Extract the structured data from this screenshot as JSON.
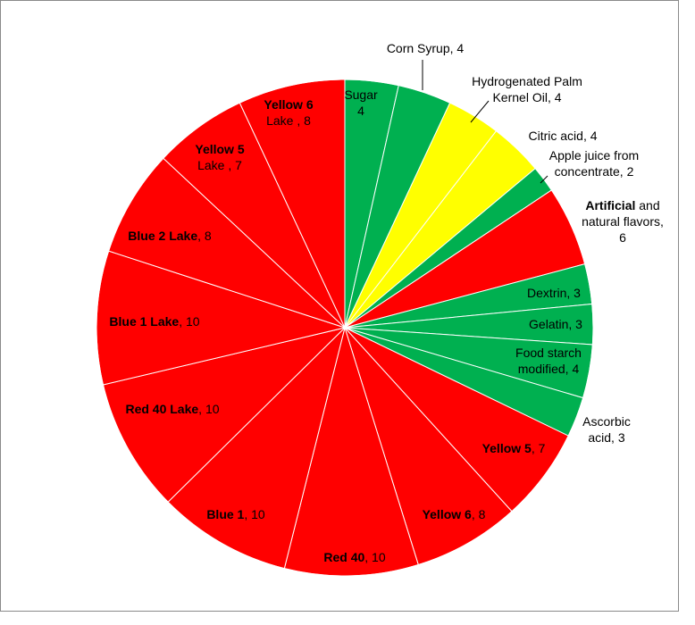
{
  "chart_data": {
    "type": "pie",
    "title": "",
    "start_angle_deg": 0,
    "direction": "clockwise",
    "slices": [
      {
        "name": "Sugar",
        "value": 4,
        "label_lines": [
          [
            {
              "t": "Sugar",
              "b": false
            }
          ],
          [
            {
              "t": "4",
              "b": false
            }
          ]
        ],
        "color": "#00b050"
      },
      {
        "name": "Corn Syrup",
        "value": 4,
        "label_lines": [
          [
            {
              "t": "Corn Syrup,  4",
              "b": false
            }
          ]
        ],
        "color": "#00b050"
      },
      {
        "name": "Hydrogenated Palm Kernel Oil",
        "value": 4,
        "label_lines": [
          [
            {
              "t": "Hydrogenated  Palm",
              "b": false
            }
          ],
          [
            {
              "t": "Kernel Oil, 4",
              "b": false
            }
          ]
        ],
        "color": "#ffff00"
      },
      {
        "name": "Citric acid",
        "value": 4,
        "label_lines": [
          [
            {
              "t": "Citric acid, 4",
              "b": false
            }
          ]
        ],
        "color": "#ffff00"
      },
      {
        "name": "Apple juice from concentrate",
        "value": 2,
        "label_lines": [
          [
            {
              "t": "Apple juice from",
              "b": false
            }
          ],
          [
            {
              "t": "concentrate,  2",
              "b": false
            }
          ]
        ],
        "color": "#00b050"
      },
      {
        "name": "Artificial and natural flavors",
        "value": 6,
        "label_lines": [
          [
            {
              "t": "Artificial",
              "b": true
            },
            {
              "t": "  and",
              "b": false
            }
          ],
          [
            {
              "t": "natural flavors,",
              "b": false
            }
          ],
          [
            {
              "t": "6",
              "b": false
            }
          ]
        ],
        "color": "#ff0000"
      },
      {
        "name": "Dextrin",
        "value": 3,
        "label_lines": [
          [
            {
              "t": "Dextrin,  3",
              "b": false
            }
          ]
        ],
        "color": "#00b050"
      },
      {
        "name": "Gelatin",
        "value": 3,
        "label_lines": [
          [
            {
              "t": "Gelatin,  3",
              "b": false
            }
          ]
        ],
        "color": "#00b050"
      },
      {
        "name": "Food starch modified",
        "value": 4,
        "label_lines": [
          [
            {
              "t": "Food starch",
              "b": false
            }
          ],
          [
            {
              "t": "modified, 4",
              "b": false
            }
          ]
        ],
        "color": "#00b050"
      },
      {
        "name": "Ascorbic acid",
        "value": 3,
        "label_lines": [
          [
            {
              "t": "Ascorbic",
              "b": false
            }
          ],
          [
            {
              "t": "acid, 3",
              "b": false
            }
          ]
        ],
        "color": "#00b050"
      },
      {
        "name": "Yellow 5",
        "value": 7,
        "label_lines": [
          [
            {
              "t": "Yellow 5",
              "b": true
            },
            {
              "t": ", 7",
              "b": false
            }
          ]
        ],
        "color": "#ff0000"
      },
      {
        "name": "Yellow 6",
        "value": 8,
        "label_lines": [
          [
            {
              "t": "Yellow 6",
              "b": true
            },
            {
              "t": ", 8",
              "b": false
            }
          ]
        ],
        "color": "#ff0000"
      },
      {
        "name": "Red 40",
        "value": 10,
        "label_lines": [
          [
            {
              "t": "Red 40",
              "b": true
            },
            {
              "t": ", 10",
              "b": false
            }
          ]
        ],
        "color": "#ff0000"
      },
      {
        "name": "Blue 1",
        "value": 10,
        "label_lines": [
          [
            {
              "t": "Blue 1",
              "b": true
            },
            {
              "t": ", 10",
              "b": false
            }
          ]
        ],
        "color": "#ff0000"
      },
      {
        "name": "Red 40 Lake",
        "value": 10,
        "label_lines": [
          [
            {
              "t": "Red 40 Lake",
              "b": true
            },
            {
              "t": ", 10",
              "b": false
            }
          ]
        ],
        "color": "#ff0000"
      },
      {
        "name": "Blue 1 Lake",
        "value": 10,
        "label_lines": [
          [
            {
              "t": "Blue 1 Lake",
              "b": true
            },
            {
              "t": ", 10",
              "b": false
            }
          ]
        ],
        "color": "#ff0000"
      },
      {
        "name": "Blue 2 Lake",
        "value": 8,
        "label_lines": [
          [
            {
              "t": "Blue 2 Lake",
              "b": true
            },
            {
              "t": ", 8",
              "b": false
            }
          ]
        ],
        "color": "#ff0000"
      },
      {
        "name": "Yellow 5 Lake",
        "value": 7,
        "label_lines": [
          [
            {
              "t": "Yellow 5",
              "b": true
            }
          ],
          [
            {
              "t": "Lake , 7",
              "b": false
            }
          ]
        ],
        "color": "#ff0000"
      },
      {
        "name": "Yellow 6 Lake",
        "value": 8,
        "label_lines": [
          [
            {
              "t": "Yellow 6",
              "b": true
            }
          ],
          [
            {
              "t": "Lake , 8",
              "b": false
            }
          ]
        ],
        "color": "#ff0000"
      }
    ]
  }
}
